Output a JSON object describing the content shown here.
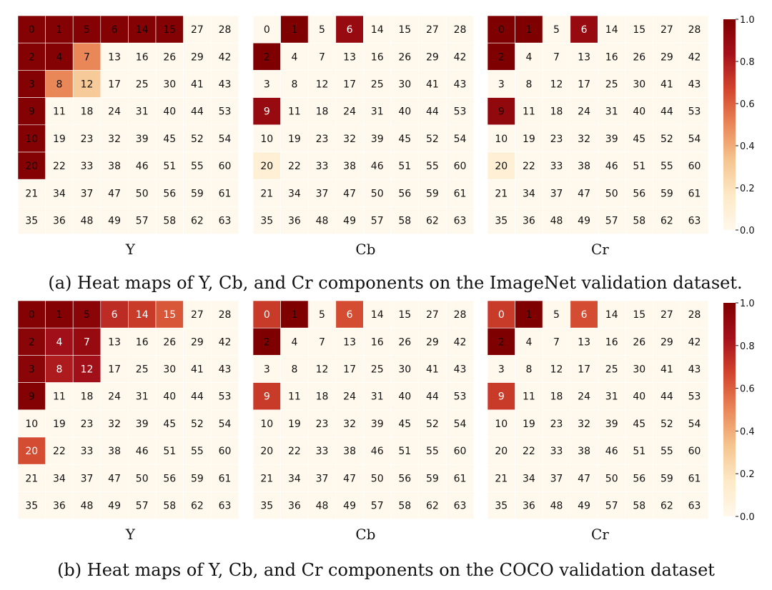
{
  "colormap": [
    "#fff8ec",
    "#fde9c6",
    "#f5c48e",
    "#ea8758",
    "#d2452d",
    "#a5111b",
    "#7f0000"
  ],
  "grid_layout": [
    [
      0,
      1,
      5,
      6,
      14,
      15,
      27,
      28
    ],
    [
      2,
      4,
      7,
      13,
      16,
      26,
      29,
      42
    ],
    [
      3,
      8,
      12,
      17,
      25,
      30,
      41,
      43
    ],
    [
      9,
      11,
      18,
      24,
      31,
      40,
      44,
      53
    ],
    [
      10,
      19,
      23,
      32,
      39,
      45,
      52,
      54
    ],
    [
      20,
      22,
      33,
      38,
      46,
      51,
      55,
      60
    ],
    [
      21,
      34,
      37,
      47,
      50,
      56,
      59,
      61
    ],
    [
      35,
      36,
      48,
      49,
      57,
      58,
      62,
      63
    ]
  ],
  "colorbar": {
    "ticks": [
      "1.0",
      "0.8",
      "0.6",
      "0.4",
      "0.2",
      "0.0"
    ],
    "tick_values": [
      1.0,
      0.8,
      0.6,
      0.4,
      0.2,
      0.0
    ],
    "range": [
      0,
      1
    ]
  },
  "chart_data": [
    {
      "type": "heatmap",
      "caption": "(a) Heat maps of Y, Cb, and Cr components on the ImageNet validation dataset.",
      "panels": [
        {
          "label": "Y",
          "values": [
            [
              0.98,
              0.98,
              0.98,
              0.98,
              0.98,
              0.98,
              0.0,
              0.0
            ],
            [
              0.98,
              0.98,
              0.5,
              0.0,
              0.0,
              0.0,
              0.0,
              0.0
            ],
            [
              0.98,
              0.5,
              0.3,
              0.0,
              0.0,
              0.0,
              0.0,
              0.0
            ],
            [
              0.98,
              0.0,
              0.0,
              0.0,
              0.0,
              0.0,
              0.0,
              0.0
            ],
            [
              0.98,
              0.0,
              0.0,
              0.0,
              0.0,
              0.0,
              0.0,
              0.0
            ],
            [
              0.98,
              0.0,
              0.0,
              0.0,
              0.0,
              0.0,
              0.0,
              0.0
            ],
            [
              0.0,
              0.0,
              0.0,
              0.0,
              0.0,
              0.0,
              0.0,
              0.0
            ],
            [
              0.0,
              0.0,
              0.0,
              0.0,
              0.0,
              0.0,
              0.0,
              0.0
            ]
          ]
        },
        {
          "label": "Cb",
          "values": [
            [
              0.0,
              1.0,
              0.0,
              0.9,
              0.0,
              0.0,
              0.0,
              0.0
            ],
            [
              1.0,
              0.0,
              0.0,
              0.0,
              0.0,
              0.0,
              0.0,
              0.0
            ],
            [
              0.0,
              0.0,
              0.0,
              0.0,
              0.0,
              0.0,
              0.0,
              0.0
            ],
            [
              0.9,
              0.0,
              0.0,
              0.0,
              0.0,
              0.0,
              0.0,
              0.0
            ],
            [
              0.0,
              0.0,
              0.0,
              0.0,
              0.0,
              0.0,
              0.0,
              0.0
            ],
            [
              0.1,
              0.0,
              0.0,
              0.0,
              0.0,
              0.0,
              0.0,
              0.0
            ],
            [
              0.0,
              0.0,
              0.0,
              0.0,
              0.0,
              0.0,
              0.0,
              0.0
            ],
            [
              0.0,
              0.0,
              0.0,
              0.0,
              0.0,
              0.0,
              0.0,
              0.0
            ]
          ]
        },
        {
          "label": "Cr",
          "values": [
            [
              1.0,
              1.0,
              0.0,
              0.9,
              0.0,
              0.0,
              0.0,
              0.0
            ],
            [
              1.0,
              0.0,
              0.0,
              0.0,
              0.0,
              0.0,
              0.0,
              0.0
            ],
            [
              0.0,
              0.0,
              0.0,
              0.0,
              0.0,
              0.0,
              0.0,
              0.0
            ],
            [
              0.92,
              0.0,
              0.0,
              0.0,
              0.0,
              0.0,
              0.0,
              0.0
            ],
            [
              0.0,
              0.0,
              0.0,
              0.0,
              0.0,
              0.0,
              0.0,
              0.0
            ],
            [
              0.1,
              0.0,
              0.0,
              0.0,
              0.0,
              0.0,
              0.0,
              0.0
            ],
            [
              0.0,
              0.0,
              0.0,
              0.0,
              0.0,
              0.0,
              0.0,
              0.0
            ],
            [
              0.0,
              0.0,
              0.0,
              0.0,
              0.0,
              0.0,
              0.0,
              0.0
            ]
          ]
        }
      ]
    },
    {
      "type": "heatmap",
      "caption": "(b) Heat maps of Y, Cb, and Cr components on the COCO validation dataset",
      "panels": [
        {
          "label": "Y",
          "values": [
            [
              0.98,
              0.98,
              0.95,
              0.75,
              0.7,
              0.62,
              0.0,
              0.0
            ],
            [
              0.95,
              0.85,
              0.9,
              0.0,
              0.0,
              0.0,
              0.0,
              0.0
            ],
            [
              0.95,
              0.8,
              0.85,
              0.0,
              0.0,
              0.0,
              0.0,
              0.0
            ],
            [
              0.98,
              0.0,
              0.0,
              0.0,
              0.0,
              0.0,
              0.0,
              0.0
            ],
            [
              0.0,
              0.0,
              0.0,
              0.0,
              0.0,
              0.0,
              0.0,
              0.0
            ],
            [
              0.65,
              0.0,
              0.0,
              0.0,
              0.0,
              0.0,
              0.0,
              0.0
            ],
            [
              0.0,
              0.0,
              0.0,
              0.0,
              0.0,
              0.0,
              0.0,
              0.0
            ],
            [
              0.0,
              0.0,
              0.0,
              0.0,
              0.0,
              0.0,
              0.0,
              0.0
            ]
          ]
        },
        {
          "label": "Cb",
          "values": [
            [
              0.7,
              1.0,
              0.0,
              0.65,
              0.0,
              0.0,
              0.0,
              0.0
            ],
            [
              1.0,
              0.0,
              0.0,
              0.0,
              0.0,
              0.0,
              0.0,
              0.0
            ],
            [
              0.0,
              0.0,
              0.0,
              0.0,
              0.0,
              0.0,
              0.0,
              0.0
            ],
            [
              0.7,
              0.0,
              0.0,
              0.0,
              0.0,
              0.0,
              0.0,
              0.0
            ],
            [
              0.0,
              0.0,
              0.0,
              0.0,
              0.0,
              0.0,
              0.0,
              0.0
            ],
            [
              0.0,
              0.0,
              0.0,
              0.0,
              0.0,
              0.0,
              0.0,
              0.0
            ],
            [
              0.0,
              0.0,
              0.0,
              0.0,
              0.0,
              0.0,
              0.0,
              0.0
            ],
            [
              0.0,
              0.0,
              0.0,
              0.0,
              0.0,
              0.0,
              0.0,
              0.0
            ]
          ]
        },
        {
          "label": "Cr",
          "values": [
            [
              0.7,
              1.0,
              0.0,
              0.65,
              0.0,
              0.0,
              0.0,
              0.0
            ],
            [
              1.0,
              0.0,
              0.0,
              0.0,
              0.0,
              0.0,
              0.0,
              0.0
            ],
            [
              0.0,
              0.0,
              0.0,
              0.0,
              0.0,
              0.0,
              0.0,
              0.0
            ],
            [
              0.7,
              0.0,
              0.0,
              0.0,
              0.0,
              0.0,
              0.0,
              0.0
            ],
            [
              0.0,
              0.0,
              0.0,
              0.0,
              0.0,
              0.0,
              0.0,
              0.0
            ],
            [
              0.0,
              0.0,
              0.0,
              0.0,
              0.0,
              0.0,
              0.0,
              0.0
            ],
            [
              0.0,
              0.0,
              0.0,
              0.0,
              0.0,
              0.0,
              0.0,
              0.0
            ],
            [
              0.0,
              0.0,
              0.0,
              0.0,
              0.0,
              0.0,
              0.0,
              0.0
            ]
          ]
        }
      ]
    }
  ]
}
